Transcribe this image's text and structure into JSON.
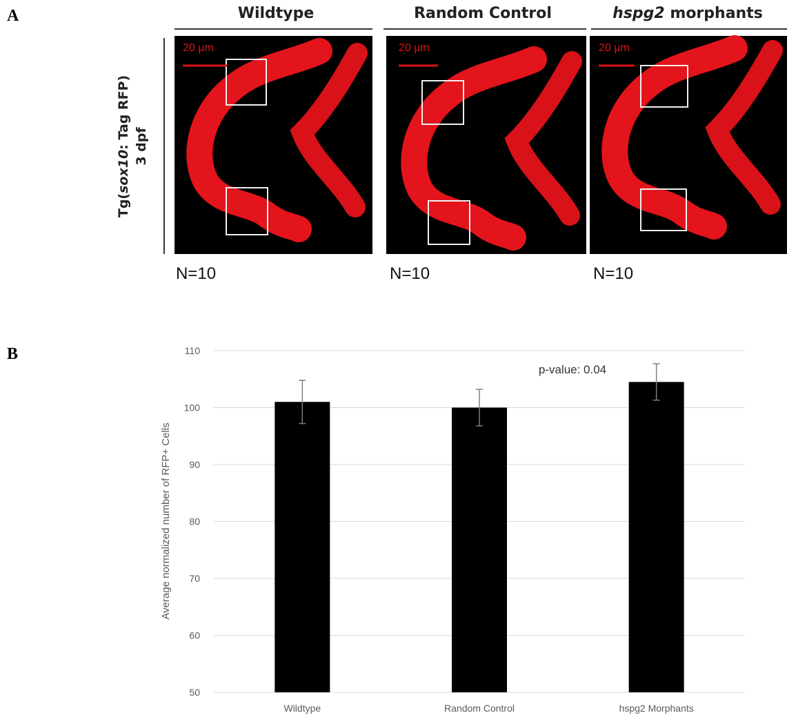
{
  "panel_a": {
    "label": "A",
    "y_label": [
      "Tg(",
      "sox10",
      ": Tag RFP)"
    ],
    "y_label_2": "3 dpf",
    "columns": [
      {
        "title": [
          "Wildtype"
        ],
        "scale_bar": "20 µm",
        "n": "N=10"
      },
      {
        "title": [
          "Random Control"
        ],
        "scale_bar": "20 µm",
        "n": "N=10"
      },
      {
        "title": [
          "hspg2",
          " morphants"
        ],
        "scale_bar": "20 µm",
        "n": "N=10"
      }
    ]
  },
  "panel_b": {
    "label": "B"
  },
  "chart_data": {
    "type": "bar",
    "y_label": "Average normalized number of RFP+ Cells",
    "categories": [
      "Wildtype",
      "Random Control",
      "hspg2 Morphants"
    ],
    "values": [
      101,
      100,
      104.5
    ],
    "errors": [
      3.8,
      3.2,
      3.2
    ],
    "color": "#000000",
    "error_color": "#7f7f7f",
    "ylim": [
      50,
      110
    ],
    "yticks": [
      50,
      60,
      70,
      80,
      90,
      100,
      110
    ],
    "grid": true,
    "annotation": "p-value: 0.04"
  }
}
